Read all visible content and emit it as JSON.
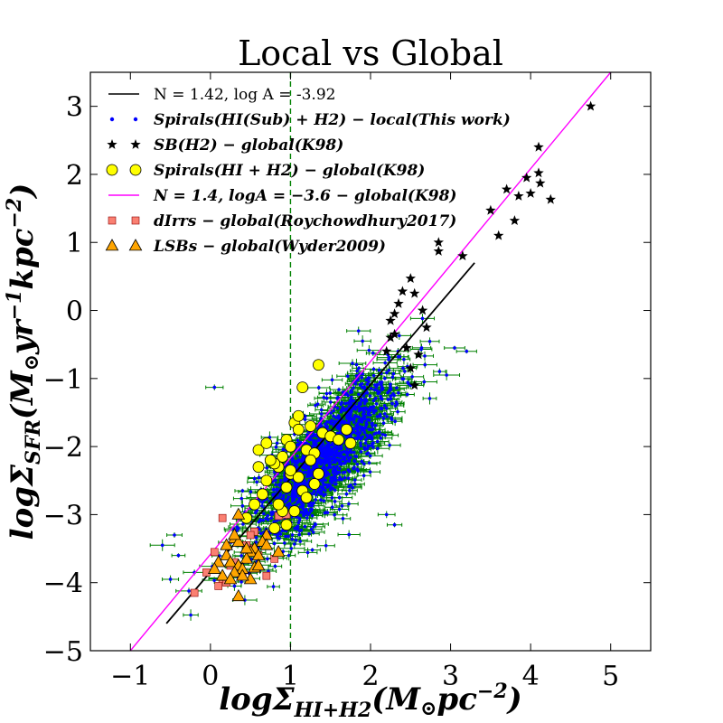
{
  "chart_data": {
    "type": "scatter",
    "title": "Local vs Global",
    "xlabel": "logΣ_HI+H2 (M⊙pc⁻²)",
    "xlabel_parts": {
      "base": "logΣ",
      "sub": "HI+H2",
      "paren": "(M",
      "odot": "⊙",
      "unit": "pc",
      "exp": "−2",
      "close": ")"
    },
    "ylabel": "logΣ_SFR (M⊙yr⁻¹kpc⁻²)",
    "ylabel_parts": {
      "base": "logΣ",
      "sub": "SFR",
      "paren": "(M",
      "odot": "⊙",
      "unit1": "yr",
      "exp1": "−1",
      "unit2": "kpc",
      "exp2": "−2",
      "close": ")"
    },
    "xlim": [
      -1.5,
      5.5
    ],
    "ylim": [
      -5,
      3.5
    ],
    "xticks": [
      -1,
      0,
      1,
      2,
      3,
      4,
      5
    ],
    "xtick_labels": [
      "−1",
      "0",
      "1",
      "2",
      "3",
      "4",
      "5"
    ],
    "yticks": [
      -5,
      -4,
      -3,
      -2,
      -1,
      0,
      1,
      2,
      3
    ],
    "ytick_labels": [
      "−5",
      "−4",
      "−3",
      "−2",
      "−1",
      "0",
      "1",
      "2",
      "3"
    ],
    "grid": false,
    "legend_position": "top-left",
    "vline": {
      "x": 1.0,
      "color": "#008000",
      "style": "dashed"
    },
    "series": [
      {
        "name": "N = 1.42, log A = -3.92",
        "kind": "line",
        "color": "#000000",
        "x": [
          -0.55,
          3.3
        ],
        "y": [
          -4.6,
          0.7
        ]
      },
      {
        "name": "Spirals(HI(Sub) + H2) − local(This work)",
        "kind": "points-errorbar",
        "color": "#0000ff",
        "errcolor": "#008000",
        "cloud": {
          "center": [
            1.4,
            -2.2
          ],
          "spread_major": 0.75,
          "spread_minor": 0.32,
          "slope": 1.42,
          "count": 1400
        },
        "outliers": {
          "x": [
            0.05,
            -0.6,
            -0.5,
            -0.2,
            3.05,
            3.2,
            1.9,
            1.85,
            2.95,
            2.5,
            -0.4,
            0.3,
            2.2,
            2.3,
            -0.45
          ],
          "y": [
            -1.13,
            -3.45,
            -3.95,
            -3.85,
            -0.55,
            -0.6,
            -0.45,
            -0.3,
            -0.95,
            -1.1,
            -3.6,
            -4.05,
            -3.0,
            -3.15,
            -3.3
          ]
        },
        "xerr": 0.12,
        "yerr": 0.06
      },
      {
        "name": "SB(H2) − global(K98)",
        "kind": "star",
        "color": "#000000",
        "x": [
          4.75,
          4.1,
          4.1,
          4.12,
          4.25,
          4.0,
          3.95,
          3.85,
          3.7,
          3.5,
          3.8,
          3.6,
          3.15,
          2.85,
          2.85,
          2.5,
          2.4,
          2.25,
          2.3,
          2.35,
          2.55,
          2.65,
          2.7,
          2.3,
          2.45,
          2.6,
          2.2,
          2.25,
          2.5,
          2.55
        ],
        "y": [
          3.0,
          2.4,
          2.02,
          1.87,
          1.63,
          1.72,
          1.95,
          1.68,
          1.78,
          1.47,
          1.32,
          1.1,
          0.8,
          1.0,
          0.87,
          0.47,
          0.28,
          -0.15,
          -0.05,
          0.1,
          0.25,
          0.0,
          -0.25,
          -0.35,
          -0.55,
          -0.65,
          -0.6,
          -0.4,
          -0.85,
          -1.1
        ]
      },
      {
        "name": "Spirals(HI + H2) − global(K98)",
        "kind": "circle",
        "color": "#ffff00",
        "x": [
          1.35,
          1.15,
          1.05,
          1.1,
          0.95,
          1.0,
          1.2,
          1.3,
          1.25,
          0.9,
          0.85,
          0.8,
          1.0,
          1.1,
          0.7,
          0.75,
          0.6,
          0.95,
          1.15,
          1.3,
          1.4,
          1.5,
          1.6,
          1.7,
          1.75,
          0.65,
          0.55,
          1.05,
          0.9,
          1.2,
          1.35,
          0.95,
          0.8,
          0.6,
          1.1,
          1.0,
          1.25,
          0.45,
          0.7,
          0.85
        ],
        "y": [
          -0.8,
          -1.13,
          -1.65,
          -1.75,
          -1.9,
          -2.0,
          -2.05,
          -2.1,
          -2.2,
          -2.15,
          -2.3,
          -2.25,
          -2.4,
          -2.45,
          -2.5,
          -2.2,
          -2.3,
          -2.6,
          -2.65,
          -2.55,
          -1.8,
          -1.85,
          -1.9,
          -1.75,
          -1.95,
          -2.7,
          -2.85,
          -2.95,
          -2.95,
          -2.75,
          -2.4,
          -3.15,
          -3.2,
          -2.05,
          -1.55,
          -2.35,
          -1.7,
          -3.05,
          -1.95,
          -2.85
        ]
      },
      {
        "name": "N = 1.4, logA = −3.6 − global(K98)",
        "kind": "line",
        "color": "#ff00ff",
        "x": [
          -1.0,
          5.0
        ],
        "y": [
          -5.0,
          3.5
        ]
      },
      {
        "name": "dIrrs − global(Roychowdhury2017)",
        "kind": "square",
        "color": "#fa8072",
        "x": [
          0.15,
          0.55,
          0.85,
          0.95,
          0.5,
          0.6,
          0.25,
          0.4,
          0.05,
          -0.05,
          0.15,
          0.3,
          0.45,
          0.7,
          0.8,
          -0.2,
          0.1,
          0.5,
          0.2
        ],
        "y": [
          -3.05,
          -3.25,
          -3.02,
          -3.0,
          -3.5,
          -3.6,
          -3.75,
          -3.85,
          -3.55,
          -3.85,
          -3.95,
          -3.7,
          -3.45,
          -3.9,
          -3.65,
          -4.15,
          -4.05,
          -3.3,
          -4.0
        ]
      },
      {
        "name": "LSBs − global(Wyder2009)",
        "kind": "triangle",
        "color": "#ffa500",
        "x": [
          0.35,
          0.3,
          0.7,
          0.65,
          0.55,
          0.5,
          0.6,
          0.45,
          0.2,
          0.25,
          0.35,
          0.1,
          0.4,
          0.3,
          0.15,
          0.55,
          0.5,
          0.25,
          0.45,
          0.35,
          0.85,
          0.7,
          0.6,
          0.4,
          0.2,
          0.3,
          0.05,
          0.35
        ],
        "y": [
          -3.0,
          -3.35,
          -3.3,
          -3.4,
          -3.5,
          -3.55,
          -3.6,
          -3.65,
          -3.6,
          -3.7,
          -3.75,
          -3.7,
          -3.8,
          -3.85,
          -3.9,
          -3.78,
          -3.95,
          -3.95,
          -3.5,
          -3.4,
          -3.55,
          -3.45,
          -3.75,
          -3.9,
          -3.45,
          -3.3,
          -3.8,
          -4.2
        ]
      }
    ]
  }
}
